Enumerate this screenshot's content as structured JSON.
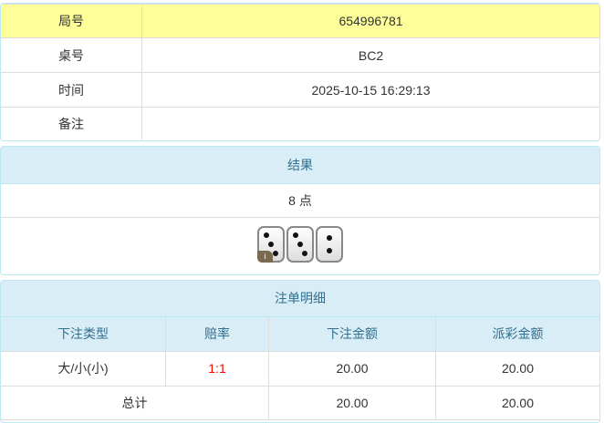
{
  "info": {
    "rows": [
      {
        "label": "局号",
        "value": "654996781"
      },
      {
        "label": "桌号",
        "value": "BC2"
      },
      {
        "label": "时间",
        "value": "2025-10-15 16:29:13"
      },
      {
        "label": "备注",
        "value": ""
      }
    ]
  },
  "result": {
    "title": "结果",
    "points": "8 点",
    "dice": [
      3,
      3,
      2
    ],
    "info_icon": "i"
  },
  "bets": {
    "title": "注单明细",
    "headers": [
      "下注类型",
      "赔率",
      "下注金额",
      "派彩金额"
    ],
    "rows": [
      {
        "type": "大/小(小)",
        "odds": "1:1",
        "amount": "20.00",
        "payout": "20.00"
      }
    ],
    "total": {
      "label": "总计",
      "amount": "20.00",
      "payout": "20.00"
    },
    "odds_color": "#ff0000",
    "highlight_color": "#ffff99"
  }
}
